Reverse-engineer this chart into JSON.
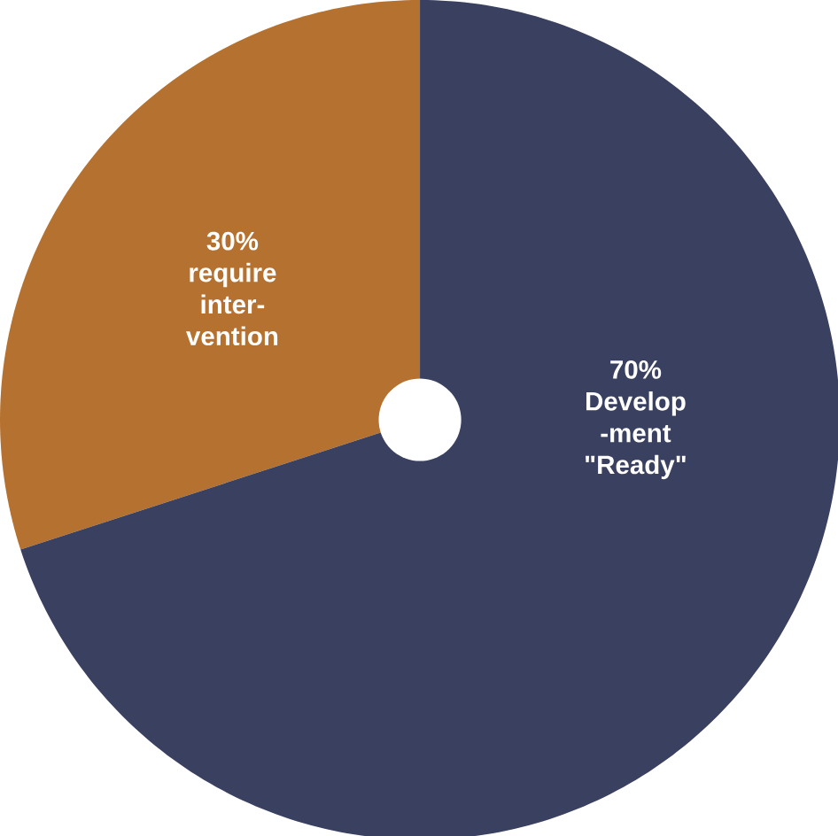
{
  "chart_data": {
    "type": "pie",
    "categories": [
      "require inter- vention",
      "Develop -ment \"Ready\""
    ],
    "values": [
      30,
      70
    ],
    "colors": [
      "#b5712f",
      "#3a4060"
    ],
    "value_labels": [
      "30%",
      "70%"
    ]
  }
}
